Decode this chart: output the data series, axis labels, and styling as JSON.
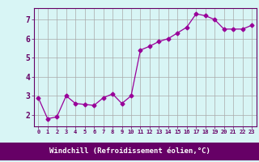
{
  "x": [
    0,
    1,
    2,
    3,
    4,
    5,
    6,
    7,
    8,
    9,
    10,
    11,
    12,
    13,
    14,
    15,
    16,
    17,
    18,
    19,
    20,
    21,
    22,
    23
  ],
  "y": [
    2.9,
    1.8,
    1.9,
    3.0,
    2.6,
    2.55,
    2.5,
    2.9,
    3.1,
    2.6,
    3.0,
    5.4,
    5.6,
    5.85,
    6.0,
    6.3,
    6.6,
    7.3,
    7.2,
    7.0,
    6.5,
    6.5,
    6.5,
    6.7
  ],
  "line_color": "#990099",
  "marker": "D",
  "marker_size": 2.5,
  "bg_color": "#d8f5f5",
  "grid_color": "#aaaaaa",
  "xlabel": "Windchill (Refroidissement éolien,°C)",
  "xlabel_color": "#ffffff",
  "xlabel_bg": "#660066",
  "ylabel_ticks": [
    2,
    3,
    4,
    5,
    6,
    7
  ],
  "xlim": [
    -0.5,
    23.5
  ],
  "ylim": [
    1.4,
    7.6
  ],
  "xtick_labels": [
    "0",
    "1",
    "2",
    "3",
    "4",
    "5",
    "6",
    "7",
    "8",
    "9",
    "10",
    "11",
    "12",
    "13",
    "14",
    "15",
    "16",
    "17",
    "18",
    "19",
    "20",
    "21",
    "22",
    "23"
  ]
}
